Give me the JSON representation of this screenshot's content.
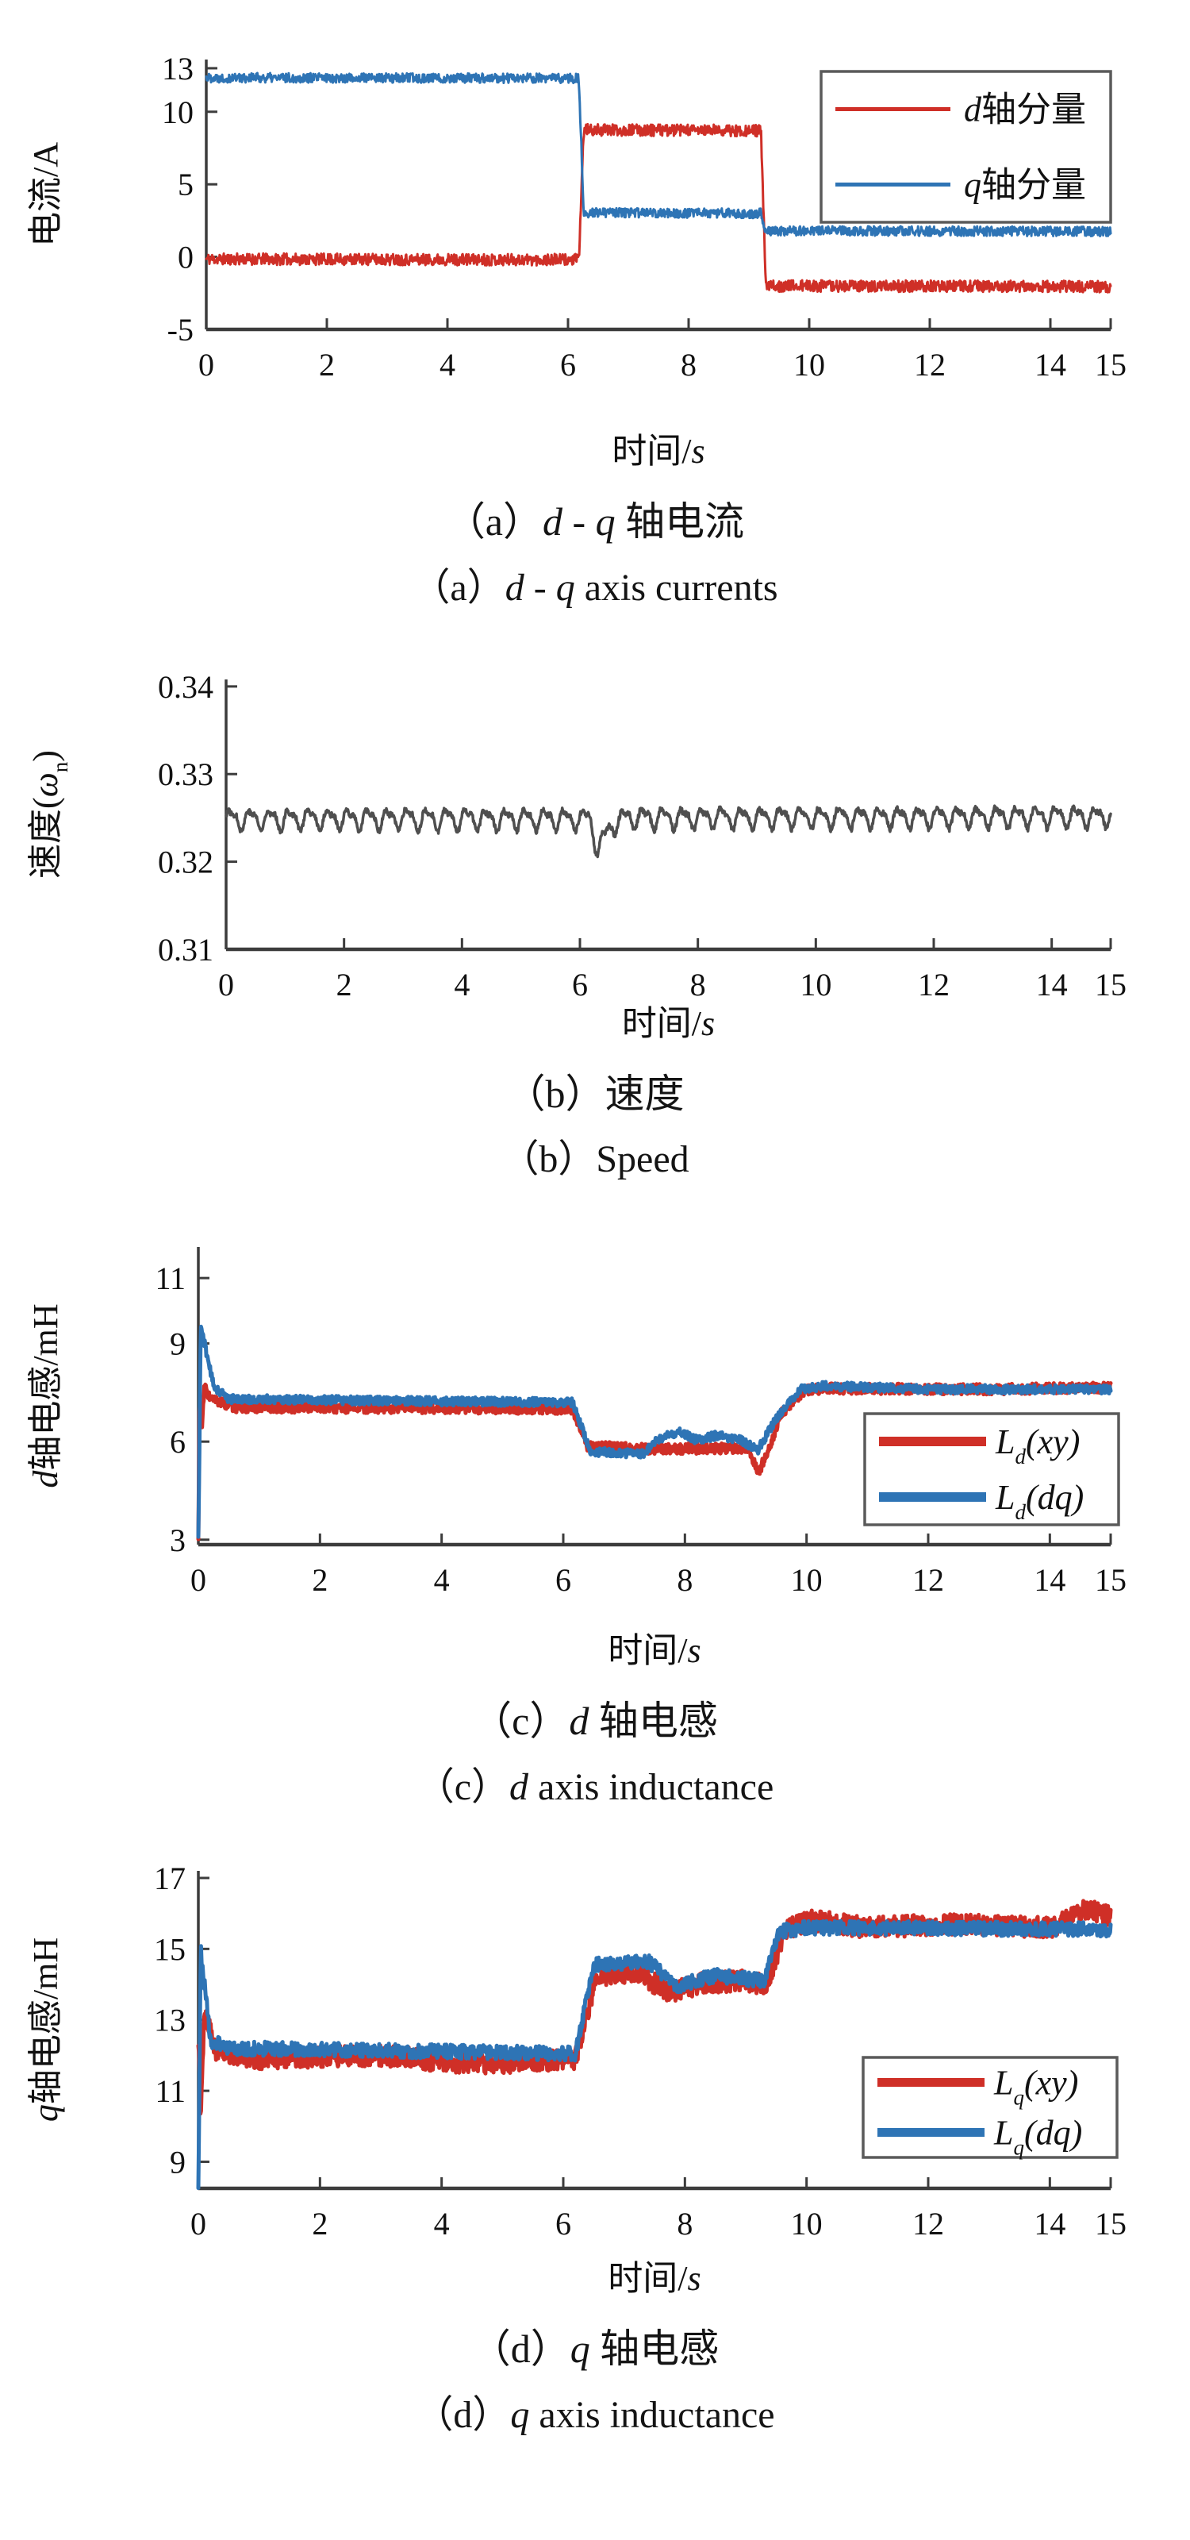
{
  "page": {
    "kind": "four-panel motor-drive experiment figure"
  },
  "colors": {
    "red_series": "#cf2f27",
    "blue_series": "#2e74b5",
    "gray_series": "#4f4f4f",
    "axis": "#3c3c3c",
    "legend_border": "#5a5a5a",
    "text": "#111111"
  },
  "panels": [
    {
      "id": "a",
      "caption_zh_runs": [
        {
          "t": "（a）"
        },
        {
          "t": "d",
          "i": true
        },
        {
          "t": " - "
        },
        {
          "t": "q",
          "i": true
        },
        {
          "t": " 轴电流"
        }
      ],
      "caption_en_runs": [
        {
          "t": "（a）"
        },
        {
          "t": "d",
          "i": true
        },
        {
          "t": " - "
        },
        {
          "t": "q",
          "i": true
        },
        {
          "t": " axis currents"
        }
      ]
    },
    {
      "id": "b",
      "caption_zh_runs": [
        {
          "t": "（b）速度"
        }
      ],
      "caption_en_runs": [
        {
          "t": "（b）Speed"
        }
      ]
    },
    {
      "id": "c",
      "caption_zh_runs": [
        {
          "t": "（c）"
        },
        {
          "t": "d",
          "i": true
        },
        {
          "t": " 轴电感"
        }
      ],
      "caption_en_runs": [
        {
          "t": "（c）"
        },
        {
          "t": "d",
          "i": true
        },
        {
          "t": " axis inductance"
        }
      ]
    },
    {
      "id": "d",
      "caption_zh_runs": [
        {
          "t": "（d）"
        },
        {
          "t": "q",
          "i": true
        },
        {
          "t": " 轴电感"
        }
      ],
      "caption_en_runs": [
        {
          "t": "（d）"
        },
        {
          "t": "q",
          "i": true
        },
        {
          "t": " axis inductance"
        }
      ]
    }
  ],
  "chart_data": [
    {
      "type": "line",
      "panel": "a",
      "xlabel_runs": [
        {
          "t": "时间/"
        },
        {
          "t": "s",
          "i": true
        }
      ],
      "ylabel_runs": [
        {
          "t": "电流/A"
        }
      ],
      "xlim": [
        0,
        15
      ],
      "ylim": [
        -5,
        13.6
      ],
      "xticks": [
        [
          0,
          "0"
        ],
        [
          2,
          "2"
        ],
        [
          4,
          "4"
        ],
        [
          6,
          "6"
        ],
        [
          8,
          "8"
        ],
        [
          10,
          "10"
        ],
        [
          12,
          "12"
        ],
        [
          14,
          "14"
        ],
        [
          15,
          "15"
        ]
      ],
      "yticks": [
        [
          13,
          "13"
        ],
        [
          10,
          "10"
        ],
        [
          5,
          "5"
        ],
        [
          0,
          "0"
        ],
        [
          -5,
          "-5"
        ]
      ],
      "grid": false,
      "legend": {
        "position": "top-right",
        "entries": [
          {
            "color": "#cf2f27",
            "runs": [
              {
                "t": "d",
                "i": true
              },
              {
                "t": "轴分量"
              }
            ]
          },
          {
            "color": "#2e74b5",
            "runs": [
              {
                "t": "q",
                "i": true
              },
              {
                "t": "轴分量"
              }
            ]
          }
        ]
      },
      "series": [
        {
          "name": "d轴分量",
          "color": "#cf2f27",
          "width": 3,
          "noise": 0.4,
          "seed": 11,
          "points": [
            [
              0,
              -0.15
            ],
            [
              6.18,
              -0.2
            ],
            [
              6.26,
              8.75
            ],
            [
              9.2,
              8.7
            ],
            [
              9.28,
              -2.0
            ],
            [
              15,
              -2.05
            ]
          ]
        },
        {
          "name": "q轴分量",
          "color": "#2e74b5",
          "width": 3,
          "noise": 0.33,
          "seed": 22,
          "points": [
            [
              0,
              12.35
            ],
            [
              6.18,
              12.3
            ],
            [
              6.26,
              3.05
            ],
            [
              9.2,
              3.0
            ],
            [
              9.28,
              1.8
            ],
            [
              15,
              1.75
            ]
          ]
        }
      ]
    },
    {
      "type": "line",
      "panel": "b",
      "xlabel_runs": [
        {
          "t": "时间/"
        },
        {
          "t": "s",
          "i": true
        }
      ],
      "ylabel_runs": [
        {
          "t": "速度("
        },
        {
          "t": "ω",
          "i": true
        },
        {
          "t": "n",
          "sub": true
        },
        {
          "t": ")"
        }
      ],
      "xlim": [
        0,
        15
      ],
      "ylim": [
        0.31,
        0.3408
      ],
      "xticks": [
        [
          0,
          "0"
        ],
        [
          2,
          "2"
        ],
        [
          4,
          "4"
        ],
        [
          6,
          "6"
        ],
        [
          8,
          "8"
        ],
        [
          10,
          "10"
        ],
        [
          12,
          "12"
        ],
        [
          14,
          "14"
        ],
        [
          15,
          "15"
        ]
      ],
      "yticks": [
        [
          0.34,
          "0.34"
        ],
        [
          0.33,
          "0.33"
        ],
        [
          0.32,
          "0.32"
        ],
        [
          0.31,
          "0.31"
        ]
      ],
      "grid": false,
      "legend": null,
      "series": [
        {
          "name": "速度",
          "color": "#4f4f4f",
          "width": 3.5,
          "noise": 0.00032,
          "seed": 77,
          "ripple": {
            "amp": 0.0013,
            "freq": 3
          },
          "points": [
            [
              0,
              0.3249
            ],
            [
              6.18,
              0.3249
            ],
            [
              6.3,
              0.3214
            ],
            [
              6.55,
              0.3243
            ],
            [
              6.8,
              0.325
            ],
            [
              15,
              0.3252
            ]
          ]
        }
      ]
    },
    {
      "type": "line",
      "panel": "c",
      "xlabel_runs": [
        {
          "t": "时间/"
        },
        {
          "t": "s",
          "i": true
        }
      ],
      "ylabel_runs": [
        {
          "t": "d",
          "i": true
        },
        {
          "t": "轴电感/mH"
        }
      ],
      "xlim": [
        0,
        15
      ],
      "ylim": [
        2.85,
        11.95
      ],
      "xticks": [
        [
          0,
          "0"
        ],
        [
          2,
          "2"
        ],
        [
          4,
          "4"
        ],
        [
          6,
          "6"
        ],
        [
          8,
          "8"
        ],
        [
          10,
          "10"
        ],
        [
          12,
          "12"
        ],
        [
          14,
          "14"
        ],
        [
          15,
          "15"
        ]
      ],
      "yticks": [
        [
          11,
          "11"
        ],
        [
          9,
          "9"
        ],
        [
          6,
          "6"
        ],
        [
          3,
          "3"
        ]
      ],
      "grid": false,
      "legend": {
        "position": "bottom-right",
        "entries": [
          {
            "color": "#cf2f27",
            "runs": [
              {
                "t": "L",
                "i": true
              },
              {
                "t": "d",
                "i": true,
                "sub": true
              },
              {
                "t": "(xy)",
                "i": true
              }
            ]
          },
          {
            "color": "#2e74b5",
            "runs": [
              {
                "t": "L",
                "i": true
              },
              {
                "t": "d",
                "i": true,
                "sub": true
              },
              {
                "t": "(dq)",
                "i": true
              }
            ]
          }
        ]
      },
      "series": [
        {
          "name": "Ld(xy)",
          "color": "#cf2f27",
          "width": 5,
          "noise": 0.16,
          "seed": 33,
          "points": [
            [
              0,
              3.0
            ],
            [
              0.02,
              7.4
            ],
            [
              0.06,
              6.35
            ],
            [
              0.1,
              7.7
            ],
            [
              0.2,
              7.3
            ],
            [
              0.6,
              7.05
            ],
            [
              6.15,
              7.0
            ],
            [
              6.4,
              5.85
            ],
            [
              7.5,
              5.78
            ],
            [
              9.05,
              5.8
            ],
            [
              9.2,
              5.05
            ],
            [
              9.35,
              5.6
            ],
            [
              9.6,
              6.9
            ],
            [
              9.95,
              7.55
            ],
            [
              10.3,
              7.62
            ],
            [
              13,
              7.6
            ],
            [
              15,
              7.65
            ]
          ]
        },
        {
          "name": "Ld(dq)",
          "color": "#2e74b5",
          "width": 5,
          "noise": 0.13,
          "seed": 44,
          "points": [
            [
              0,
              3.0
            ],
            [
              0.04,
              9.55
            ],
            [
              0.25,
              7.7
            ],
            [
              0.5,
              7.3
            ],
            [
              3,
              7.25
            ],
            [
              6.15,
              7.2
            ],
            [
              6.45,
              5.7
            ],
            [
              7.3,
              5.62
            ],
            [
              7.55,
              6.05
            ],
            [
              7.9,
              6.3
            ],
            [
              8.2,
              6.05
            ],
            [
              8.55,
              6.2
            ],
            [
              8.9,
              6.05
            ],
            [
              9.2,
              5.75
            ],
            [
              9.5,
              6.7
            ],
            [
              9.9,
              7.6
            ],
            [
              10.3,
              7.7
            ],
            [
              12,
              7.6
            ],
            [
              15,
              7.6
            ]
          ]
        }
      ]
    },
    {
      "type": "line",
      "panel": "d",
      "xlabel_runs": [
        {
          "t": "时间/"
        },
        {
          "t": "s",
          "i": true
        }
      ],
      "ylabel_runs": [
        {
          "t": "q",
          "i": true
        },
        {
          "t": "轴电感/mH"
        }
      ],
      "xlim": [
        0,
        15
      ],
      "ylim": [
        8.25,
        17.2
      ],
      "xticks": [
        [
          0,
          "0"
        ],
        [
          2,
          "2"
        ],
        [
          4,
          "4"
        ],
        [
          6,
          "6"
        ],
        [
          8,
          "8"
        ],
        [
          10,
          "10"
        ],
        [
          12,
          "12"
        ],
        [
          14,
          "14"
        ],
        [
          15,
          "15"
        ]
      ],
      "yticks": [
        [
          17,
          "17"
        ],
        [
          15,
          "15"
        ],
        [
          13,
          "13"
        ],
        [
          11,
          "11"
        ],
        [
          9,
          "9"
        ]
      ],
      "grid": false,
      "legend": {
        "position": "bottom-right",
        "entries": [
          {
            "color": "#cf2f27",
            "runs": [
              {
                "t": "L",
                "i": true
              },
              {
                "t": "q",
                "i": true,
                "sub": true
              },
              {
                "t": "(xy)",
                "i": true
              }
            ]
          },
          {
            "color": "#2e74b5",
            "runs": [
              {
                "t": "L",
                "i": true
              },
              {
                "t": "q",
                "i": true,
                "sub": true
              },
              {
                "t": "(dq)",
                "i": true
              }
            ]
          }
        ]
      },
      "series": [
        {
          "name": "Lq(xy)",
          "color": "#cf2f27",
          "width": 5,
          "noise": 0.3,
          "seed": 55,
          "points": [
            [
              0,
              12.3
            ],
            [
              0.04,
              10.4
            ],
            [
              0.1,
              13.3
            ],
            [
              0.3,
              12.1
            ],
            [
              1,
              11.9
            ],
            [
              3,
              12.0
            ],
            [
              4.5,
              11.75
            ],
            [
              6.2,
              11.9
            ],
            [
              6.55,
              14.25
            ],
            [
              7.2,
              14.35
            ],
            [
              7.75,
              13.75
            ],
            [
              8.3,
              14.05
            ],
            [
              9.0,
              14.1
            ],
            [
              9.35,
              14.0
            ],
            [
              9.65,
              15.55
            ],
            [
              10.1,
              15.8
            ],
            [
              11,
              15.6
            ],
            [
              12.5,
              15.7
            ],
            [
              14,
              15.6
            ],
            [
              14.6,
              16.1
            ],
            [
              15,
              15.9
            ]
          ]
        },
        {
          "name": "Lq(dq)",
          "color": "#2e74b5",
          "width": 5,
          "noise": 0.2,
          "seed": 66,
          "points": [
            [
              0,
              8.4
            ],
            [
              0.04,
              15.0
            ],
            [
              0.2,
              12.4
            ],
            [
              0.5,
              12.2
            ],
            [
              6.2,
              12.05
            ],
            [
              6.5,
              14.55
            ],
            [
              7.4,
              14.65
            ],
            [
              7.85,
              13.95
            ],
            [
              8.5,
              14.25
            ],
            [
              9.3,
              14.1
            ],
            [
              9.55,
              15.5
            ],
            [
              10,
              15.6
            ],
            [
              15,
              15.55
            ]
          ]
        }
      ]
    }
  ]
}
